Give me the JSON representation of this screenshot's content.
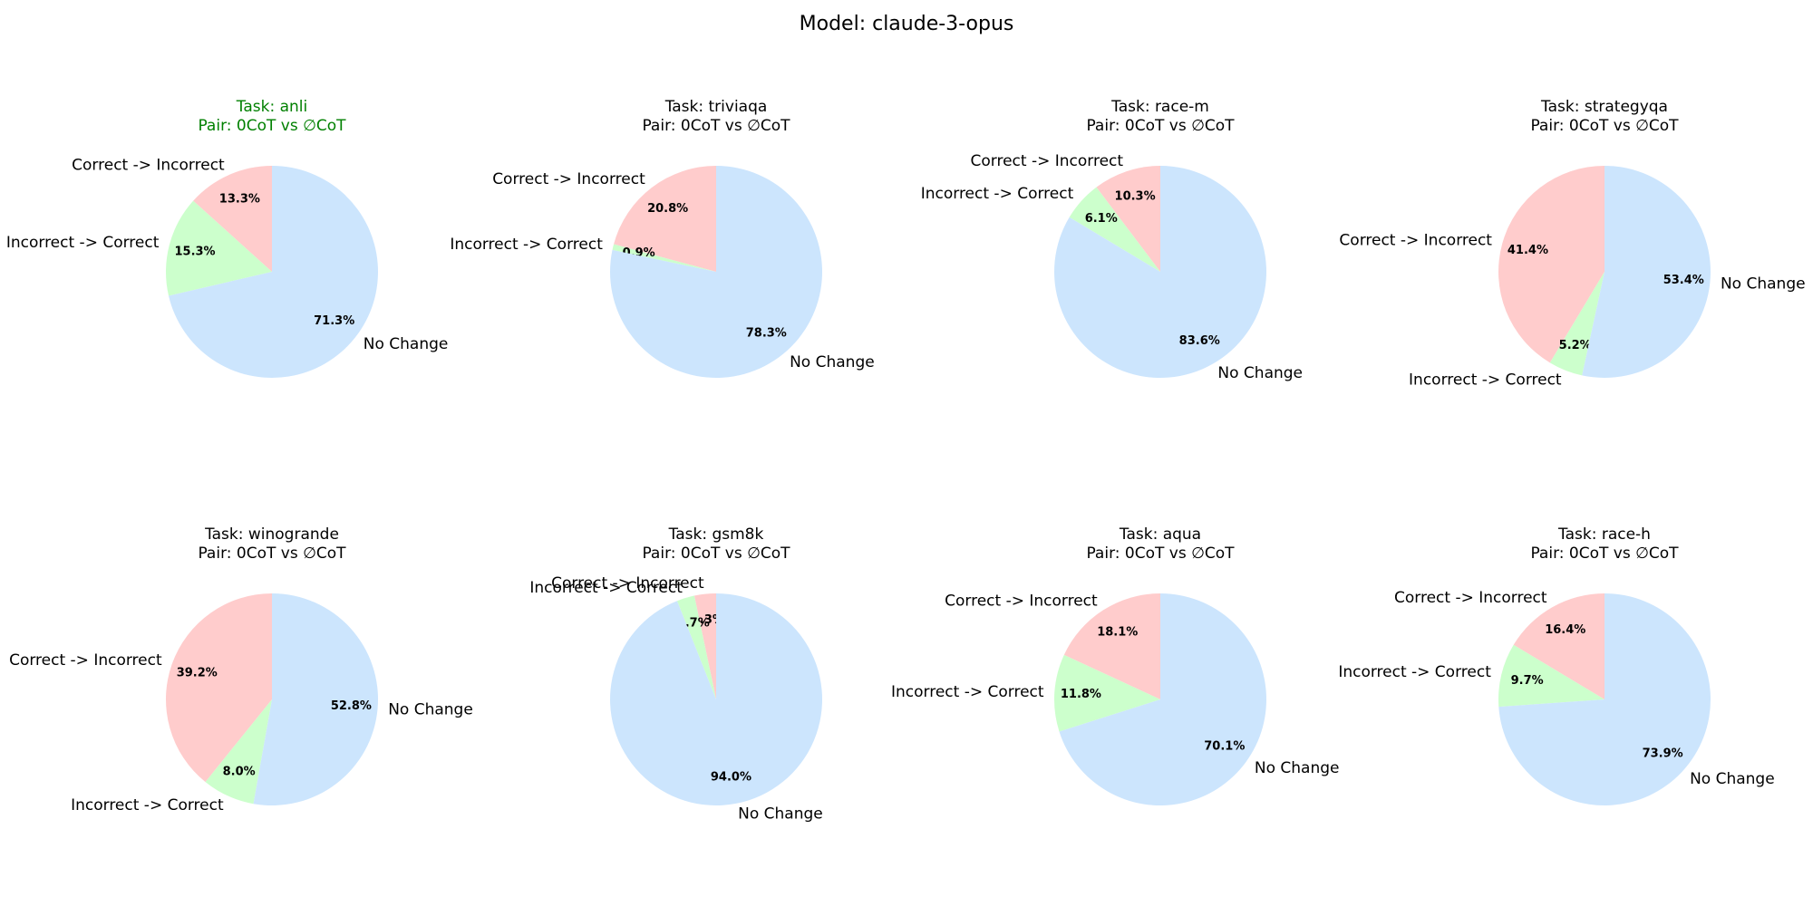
{
  "figure": {
    "title": "Model: claude-3-opus"
  },
  "colors": {
    "correct_to_incorrect": "#ffcccc",
    "incorrect_to_correct": "#ccffcc",
    "no_change": "#cce5fd",
    "highlight_title": "#008000"
  },
  "chart_data": [
    {
      "type": "pie",
      "title": "Task: anli",
      "subtitle": "Pair: 0CoT vs ∅CoT",
      "title_color": "#008000",
      "labels": [
        "Correct -> Incorrect",
        "Incorrect -> Correct",
        "No Change"
      ],
      "values": [
        13.3,
        15.3,
        71.3
      ],
      "value_labels": [
        "13.3%",
        "15.3%",
        "71.3%"
      ]
    },
    {
      "type": "pie",
      "title": "Task: triviaqa",
      "subtitle": "Pair: 0CoT vs ∅CoT",
      "labels": [
        "Correct -> Incorrect",
        "Incorrect -> Correct",
        "No Change"
      ],
      "values": [
        20.8,
        0.9,
        78.3
      ],
      "value_labels": [
        "20.8%",
        "0.9%",
        "78.3%"
      ]
    },
    {
      "type": "pie",
      "title": "Task: race-m",
      "subtitle": "Pair: 0CoT vs ∅CoT",
      "labels": [
        "Correct -> Incorrect",
        "Incorrect -> Correct",
        "No Change"
      ],
      "values": [
        10.3,
        6.1,
        83.6
      ],
      "value_labels": [
        "10.3%",
        "6.1%",
        "83.6%"
      ]
    },
    {
      "type": "pie",
      "title": "Task: strategyqa",
      "subtitle": "Pair: 0CoT vs ∅CoT",
      "labels": [
        "Correct -> Incorrect",
        "Incorrect -> Correct",
        "No Change"
      ],
      "values": [
        41.4,
        5.2,
        53.4
      ],
      "value_labels": [
        "41.4%",
        "5.2%",
        "53.4%"
      ]
    },
    {
      "type": "pie",
      "title": "Task: winogrande",
      "subtitle": "Pair: 0CoT vs ∅CoT",
      "labels": [
        "Correct -> Incorrect",
        "Incorrect -> Correct",
        "No Change"
      ],
      "values": [
        39.2,
        8.0,
        52.8
      ],
      "value_labels": [
        "39.2%",
        "8.0%",
        "52.8%"
      ]
    },
    {
      "type": "pie",
      "title": "Task: gsm8k",
      "subtitle": "Pair: 0CoT vs ∅CoT",
      "labels": [
        "Correct -> Incorrect",
        "Incorrect -> Correct",
        "No Change"
      ],
      "values": [
        3.3,
        2.7,
        94.0
      ],
      "value_labels": [
        "3.3%",
        "2.7%",
        "94.0%"
      ]
    },
    {
      "type": "pie",
      "title": "Task: aqua",
      "subtitle": "Pair: 0CoT vs ∅CoT",
      "labels": [
        "Correct -> Incorrect",
        "Incorrect -> Correct",
        "No Change"
      ],
      "values": [
        18.1,
        11.8,
        70.1
      ],
      "value_labels": [
        "18.1%",
        "11.8%",
        "70.1%"
      ]
    },
    {
      "type": "pie",
      "title": "Task: race-h",
      "subtitle": "Pair: 0CoT vs ∅CoT",
      "labels": [
        "Correct -> Incorrect",
        "Incorrect -> Correct",
        "No Change"
      ],
      "values": [
        16.4,
        9.7,
        73.9
      ],
      "value_labels": [
        "16.4%",
        "9.7%",
        "73.9%"
      ]
    }
  ]
}
